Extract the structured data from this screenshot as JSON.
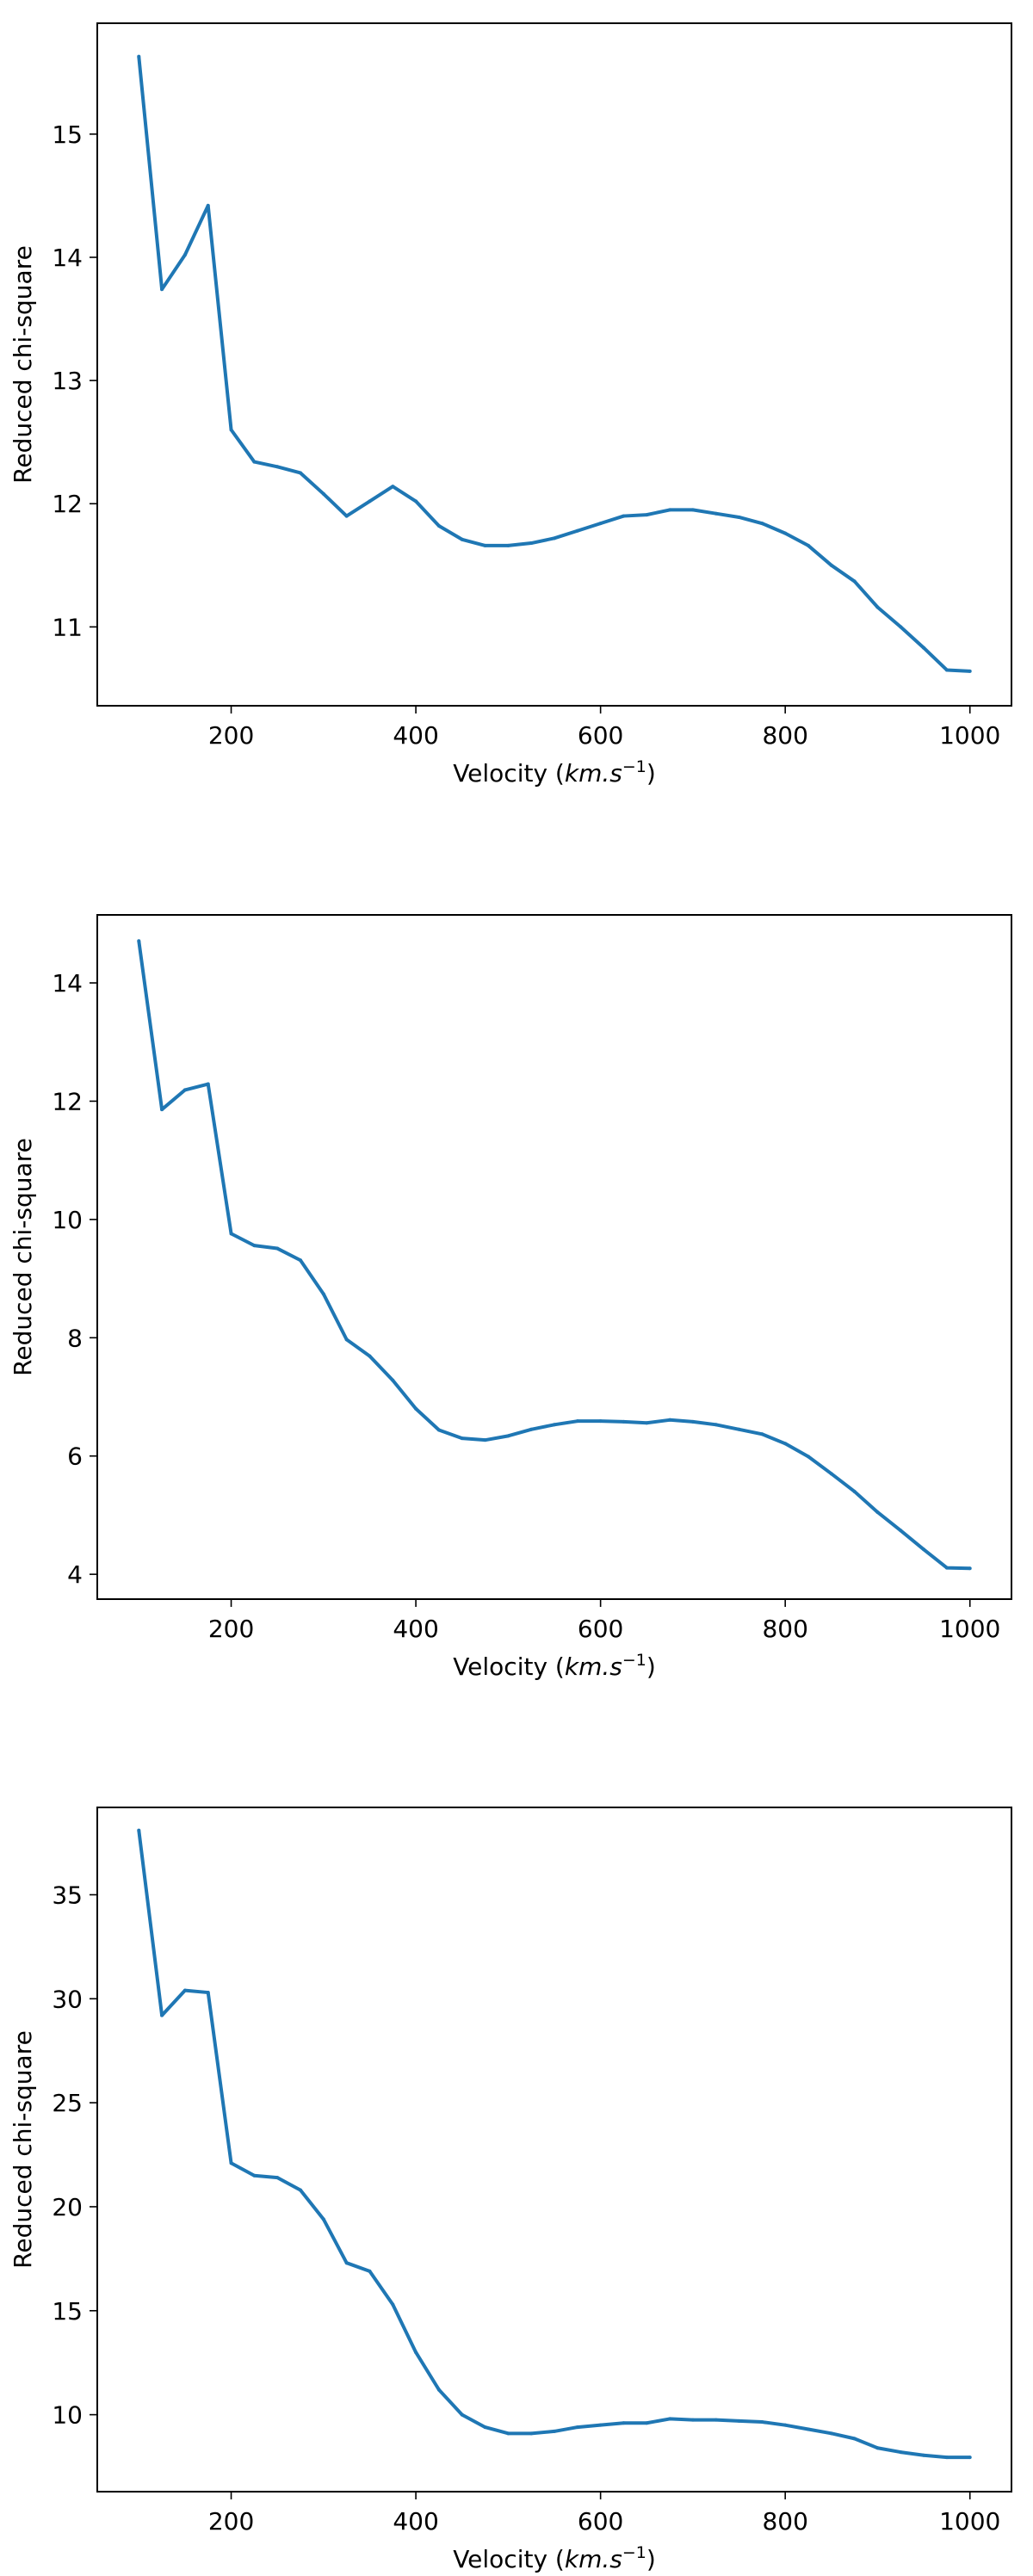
{
  "chart_data": [
    {
      "type": "line",
      "xlabel": {
        "prefix": "Velocity (",
        "unit_italic": "km.s",
        "exponent": "−1",
        "suffix": ")"
      },
      "ylabel": "Reduced chi-square",
      "xlim": [
        55,
        1045
      ],
      "ylim": [
        10.36,
        15.9
      ],
      "xticks": [
        200,
        400,
        600,
        800,
        1000
      ],
      "yticks": [
        11,
        12,
        13,
        14,
        15
      ],
      "grid": false,
      "color": "#1f77b4",
      "series": [
        {
          "x": [
            100,
            125,
            150,
            175,
            200,
            225,
            250,
            275,
            300,
            325,
            350,
            375,
            400,
            425,
            450,
            475,
            500,
            525,
            550,
            575,
            600,
            625,
            650,
            675,
            700,
            725,
            750,
            775,
            800,
            825,
            850,
            875,
            900,
            925,
            950,
            975,
            1000
          ],
          "values": [
            15.63,
            13.74,
            14.02,
            14.42,
            12.6,
            12.34,
            12.3,
            12.25,
            12.08,
            11.9,
            12.02,
            12.14,
            12.02,
            11.82,
            11.71,
            11.66,
            11.66,
            11.68,
            11.72,
            11.78,
            11.84,
            11.9,
            11.91,
            11.95,
            11.95,
            11.92,
            11.89,
            11.84,
            11.76,
            11.66,
            11.5,
            11.37,
            11.16,
            11.0,
            10.83,
            10.65,
            10.64
          ]
        }
      ]
    },
    {
      "type": "line",
      "xlabel": {
        "prefix": "Velocity (",
        "unit_italic": "km.s",
        "exponent": "−1",
        "suffix": ")"
      },
      "ylabel": "Reduced chi-square",
      "xlim": [
        55,
        1045
      ],
      "ylim": [
        3.58,
        15.15
      ],
      "xticks": [
        200,
        400,
        600,
        800,
        1000
      ],
      "yticks": [
        4,
        6,
        8,
        10,
        12,
        14
      ],
      "grid": false,
      "color": "#1f77b4",
      "series": [
        {
          "x": [
            100,
            125,
            150,
            175,
            200,
            225,
            250,
            275,
            300,
            325,
            350,
            375,
            400,
            425,
            450,
            475,
            500,
            525,
            550,
            575,
            600,
            625,
            650,
            675,
            700,
            725,
            750,
            775,
            800,
            825,
            850,
            875,
            900,
            925,
            950,
            975,
            1000
          ],
          "values": [
            14.71,
            11.86,
            12.19,
            12.29,
            9.76,
            9.56,
            9.51,
            9.31,
            8.74,
            7.97,
            7.69,
            7.28,
            6.8,
            6.44,
            6.3,
            6.27,
            6.34,
            6.45,
            6.53,
            6.59,
            6.59,
            6.58,
            6.56,
            6.61,
            6.58,
            6.53,
            6.45,
            6.37,
            6.21,
            5.99,
            5.7,
            5.4,
            5.05,
            4.74,
            4.42,
            4.11,
            4.1
          ]
        }
      ]
    },
    {
      "type": "line",
      "xlabel": {
        "prefix": "Velocity (",
        "unit_italic": "km.s",
        "exponent": "−1",
        "suffix": ")"
      },
      "ylabel": "Reduced chi-square",
      "xlim": [
        55,
        1045
      ],
      "ylim": [
        6.3,
        39.2
      ],
      "xticks": [
        200,
        400,
        600,
        800,
        1000
      ],
      "yticks": [
        10,
        15,
        20,
        25,
        30,
        35
      ],
      "grid": false,
      "color": "#1f77b4",
      "series": [
        {
          "x": [
            100,
            125,
            150,
            175,
            200,
            225,
            250,
            275,
            300,
            325,
            350,
            375,
            400,
            425,
            450,
            475,
            500,
            525,
            550,
            575,
            600,
            625,
            650,
            675,
            700,
            725,
            750,
            775,
            800,
            825,
            850,
            875,
            900,
            925,
            950,
            975,
            1000
          ],
          "values": [
            38.1,
            29.2,
            30.4,
            30.3,
            22.1,
            21.5,
            21.4,
            20.8,
            19.4,
            17.3,
            16.9,
            15.3,
            13.0,
            11.2,
            10.0,
            9.4,
            9.1,
            9.1,
            9.2,
            9.4,
            9.5,
            9.6,
            9.6,
            9.8,
            9.75,
            9.75,
            9.7,
            9.65,
            9.5,
            9.3,
            9.1,
            8.85,
            8.4,
            8.2,
            8.05,
            7.95,
            7.95
          ]
        }
      ]
    }
  ]
}
